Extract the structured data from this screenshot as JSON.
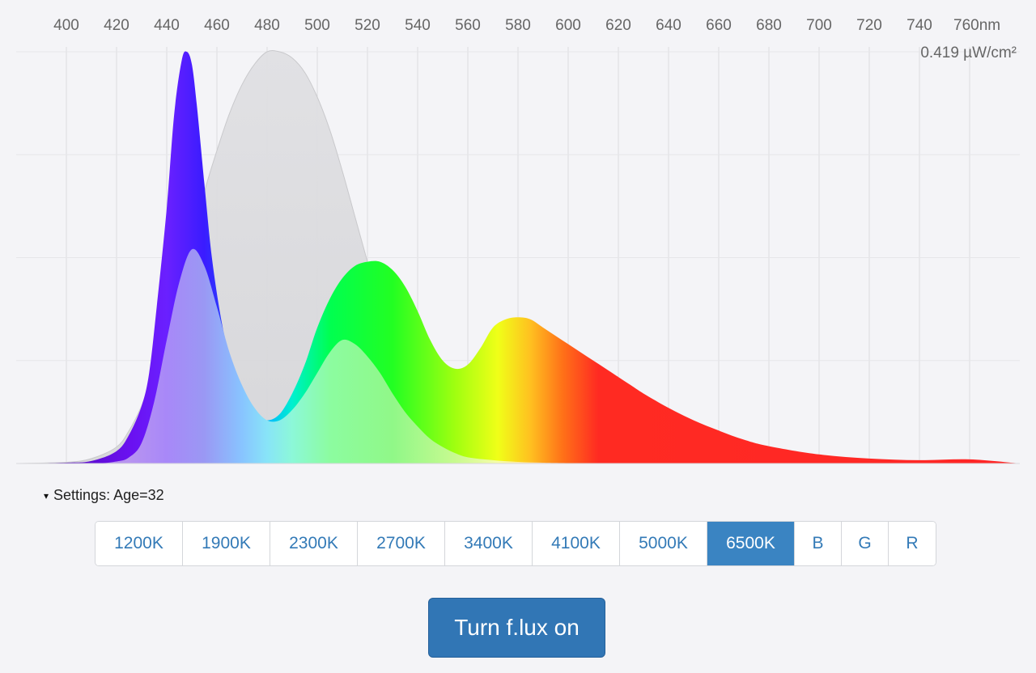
{
  "chart_data": {
    "type": "area",
    "title": "",
    "xlabel": "",
    "ylabel": "",
    "x_unit": "nm",
    "tick_labels": [
      "400",
      "420",
      "440",
      "460",
      "480",
      "500",
      "520",
      "540",
      "560",
      "580",
      "600",
      "620",
      "640",
      "660",
      "680",
      "700",
      "720",
      "740",
      "760nm"
    ],
    "xlim": [
      380,
      780
    ],
    "ylim": [
      0,
      1
    ],
    "y_max_label": "0.419 µW/cm²",
    "grid": true,
    "series": [
      {
        "style": "gray-area",
        "x": [
          380,
          400,
          410,
          420,
          425,
          430,
          435,
          440,
          445,
          450,
          455,
          460,
          465,
          470,
          475,
          480,
          485,
          490,
          495,
          500,
          505,
          510,
          515,
          520,
          525,
          530,
          535,
          540,
          545,
          550,
          560,
          570,
          580,
          590,
          600,
          620,
          640,
          660,
          680,
          700,
          720,
          740,
          760,
          780
        ],
        "values": [
          0,
          0.003,
          0.012,
          0.04,
          0.08,
          0.14,
          0.22,
          0.32,
          0.43,
          0.54,
          0.66,
          0.76,
          0.85,
          0.92,
          0.97,
          1.0,
          1.0,
          0.985,
          0.95,
          0.89,
          0.81,
          0.71,
          0.6,
          0.49,
          0.38,
          0.29,
          0.21,
          0.15,
          0.105,
          0.072,
          0.035,
          0.017,
          0.009,
          0.005,
          0.003,
          0.001,
          0.0005,
          0,
          0,
          0,
          0,
          0,
          0,
          0
        ]
      },
      {
        "style": "spectrum-vivid",
        "x": [
          380,
          400,
          410,
          420,
          425,
          430,
          433,
          436,
          440,
          443,
          446,
          448,
          450,
          452,
          455,
          458,
          462,
          466,
          470,
          475,
          480,
          485,
          490,
          495,
          500,
          505,
          510,
          515,
          520,
          525,
          530,
          535,
          540,
          545,
          550,
          555,
          560,
          565,
          570,
          575,
          580,
          585,
          590,
          595,
          600,
          605,
          610,
          615,
          620,
          625,
          630,
          640,
          650,
          660,
          670,
          680,
          700,
          720,
          740,
          760,
          780
        ],
        "values": [
          0,
          0.002,
          0.006,
          0.03,
          0.07,
          0.14,
          0.22,
          0.38,
          0.62,
          0.85,
          0.98,
          1.0,
          0.97,
          0.87,
          0.68,
          0.5,
          0.34,
          0.24,
          0.17,
          0.12,
          0.105,
          0.12,
          0.17,
          0.24,
          0.33,
          0.4,
          0.45,
          0.48,
          0.49,
          0.49,
          0.47,
          0.43,
          0.37,
          0.3,
          0.25,
          0.23,
          0.24,
          0.28,
          0.33,
          0.35,
          0.355,
          0.35,
          0.33,
          0.31,
          0.29,
          0.27,
          0.25,
          0.23,
          0.21,
          0.19,
          0.17,
          0.135,
          0.105,
          0.08,
          0.058,
          0.042,
          0.022,
          0.012,
          0.008,
          0.01,
          0
        ]
      },
      {
        "style": "spectrum-pastel",
        "x": [
          380,
          410,
          420,
          425,
          430,
          435,
          440,
          445,
          450,
          455,
          460,
          465,
          470,
          475,
          480,
          485,
          490,
          495,
          500,
          505,
          510,
          515,
          520,
          525,
          530,
          535,
          540,
          545,
          550,
          555,
          560,
          570,
          580,
          590,
          600,
          620,
          640,
          660,
          680,
          700,
          720,
          740,
          760,
          780
        ],
        "values": [
          0,
          0,
          0.005,
          0.015,
          0.05,
          0.15,
          0.3,
          0.44,
          0.52,
          0.48,
          0.38,
          0.27,
          0.19,
          0.135,
          0.105,
          0.105,
          0.13,
          0.17,
          0.22,
          0.27,
          0.3,
          0.29,
          0.26,
          0.22,
          0.17,
          0.125,
          0.09,
          0.06,
          0.04,
          0.025,
          0.015,
          0.008,
          0.004,
          0.002,
          0.001,
          0,
          0,
          0,
          0,
          0,
          0,
          0,
          0,
          0
        ]
      }
    ],
    "spectrum_colors": [
      {
        "nm": 380,
        "vivid": "#4a0aa0",
        "pastel": "#a08ad0"
      },
      {
        "nm": 425,
        "vivid": "#6a10f0",
        "pastel": "#b894f0"
      },
      {
        "nm": 440,
        "vivid": "#6a20ff",
        "pastel": "#a888f8"
      },
      {
        "nm": 455,
        "vivid": "#3a1cff",
        "pastel": "#9a98f4"
      },
      {
        "nm": 470,
        "vivid": "#1e5cff",
        "pastel": "#88c4ff"
      },
      {
        "nm": 480,
        "vivid": "#00b8ff",
        "pastel": "#88e4f8"
      },
      {
        "nm": 490,
        "vivid": "#00f0d0",
        "pastel": "#8cf8d8"
      },
      {
        "nm": 505,
        "vivid": "#00ff50",
        "pastel": "#8cfca0"
      },
      {
        "nm": 530,
        "vivid": "#22ff22",
        "pastel": "#90f888"
      },
      {
        "nm": 555,
        "vivid": "#a0ff10",
        "pastel": "#c8fa90"
      },
      {
        "nm": 572,
        "vivid": "#f0ff18",
        "pastel": "#f6fca8"
      },
      {
        "nm": 585,
        "vivid": "#ffc020",
        "pastel": "#ffe0a0"
      },
      {
        "nm": 598,
        "vivid": "#ff7018",
        "pastel": "#ffb090"
      },
      {
        "nm": 612,
        "vivid": "#ff2a22",
        "pastel": "#ff9a90"
      },
      {
        "nm": 780,
        "vivid": "#ff2626",
        "pastel": "#ff9a90"
      }
    ]
  },
  "settings": {
    "caret": "▾",
    "label": "Settings: Age=32"
  },
  "presets": [
    {
      "label": "1200K",
      "active": false
    },
    {
      "label": "1900K",
      "active": false
    },
    {
      "label": "2300K",
      "active": false
    },
    {
      "label": "2700K",
      "active": false
    },
    {
      "label": "3400K",
      "active": false
    },
    {
      "label": "4100K",
      "active": false
    },
    {
      "label": "5000K",
      "active": false
    },
    {
      "label": "6500K",
      "active": true
    },
    {
      "label": "B",
      "active": false
    },
    {
      "label": "G",
      "active": false
    },
    {
      "label": "R",
      "active": false
    }
  ],
  "action_button": {
    "label": "Turn f.lux on"
  },
  "colors": {
    "accent": "#3176b5",
    "active_preset": "#3a84c2",
    "link_text": "#337ab7",
    "background": "#f4f4f7",
    "grid": "#dcdcdf",
    "gray_area": "#dcdcde"
  }
}
